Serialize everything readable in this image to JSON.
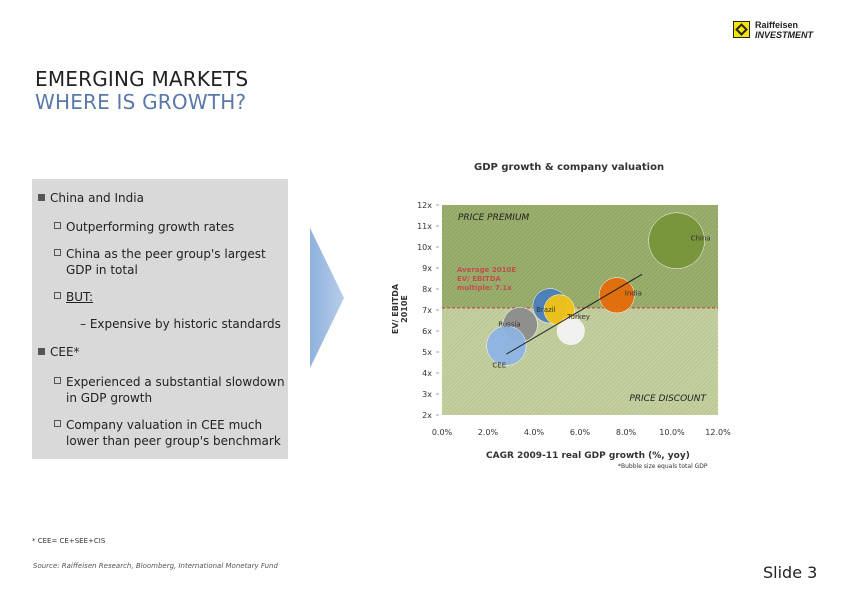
{
  "brand": {
    "line1": "Raiffeisen",
    "line2": "INVESTMENT"
  },
  "title": {
    "line1": "EMERGING MARKETS",
    "line2": "WHERE IS GROWTH?"
  },
  "bullets": {
    "china_india": "China and India",
    "outperforming": "Outperforming growth rates",
    "peer_line1": "China as the peer group's largest",
    "peer_line2": "GDP in total",
    "but": "BUT:",
    "expensive": "– Expensive by historic standards",
    "cee": "CEE*",
    "slowdown_line1": "Experienced a substantial slowdown",
    "slowdown_line2": "in GDP growth",
    "valuation_line1": "Company valuation in CEE much",
    "valuation_line2": "lower than peer group's benchmark"
  },
  "chart_data": {
    "type": "scatter",
    "title": "GDP growth & company valuation",
    "xlabel": "CAGR 2009-11 real GDP growth (%, yoy)",
    "ylabel": "EV/ EBITDA 2010E",
    "xlim": [
      0,
      12
    ],
    "ylim": [
      2,
      12
    ],
    "x_ticks": [
      "0.0%",
      "2.0%",
      "4.0%",
      "6.0%",
      "8.0%",
      "10.0%",
      "12.0%"
    ],
    "y_ticks": [
      "12x",
      "11x",
      "10x",
      "9x",
      "8x",
      "7x",
      "6x",
      "5x",
      "4x",
      "3x",
      "2x"
    ],
    "average_line": 7.1,
    "average_label": [
      "Average 2010E",
      "EV/ EBITDA",
      "multiple: 7.1x"
    ],
    "premium_label": "PRICE PREMIUM",
    "discount_label": "PRICE DISCOUNT",
    "premium_color": "#9aae6e",
    "discount_color": "#c3cf9e",
    "average_line_color": "#c0504d",
    "points": [
      {
        "name": "China",
        "x": 10.2,
        "y": 10.3,
        "size": 1.0,
        "color": "#77953a"
      },
      {
        "name": "India",
        "x": 7.6,
        "y": 7.7,
        "size": 0.4,
        "color": "#e46c0a"
      },
      {
        "name": "Brazil",
        "x": 4.7,
        "y": 7.2,
        "size": 0.38,
        "color": "#4a7ebb"
      },
      {
        "name": "Russia",
        "x": 3.4,
        "y": 6.3,
        "size": 0.38,
        "color": "#8c8c8c"
      },
      {
        "name": "Turkey",
        "x": 5.1,
        "y": 7.0,
        "size": 0.3,
        "color": "#f2c314"
      },
      {
        "name": "",
        "x": 5.6,
        "y": 6.0,
        "size": 0.24,
        "color": "#f2f2f2"
      },
      {
        "name": "CEE",
        "x": 2.8,
        "y": 5.3,
        "size": 0.5,
        "color": "#8db3e2"
      }
    ],
    "trend": {
      "x1": 2.8,
      "y1": 4.9,
      "x2": 8.7,
      "y2": 8.7
    },
    "bubble_note": "*Bubble size equals total GDP"
  },
  "footnote": "* CEE= CE+SEE+CIS",
  "source": "Source: Raiffeisen Research, Bloomberg, International Monetary Fund",
  "slide_number": "Slide 3"
}
